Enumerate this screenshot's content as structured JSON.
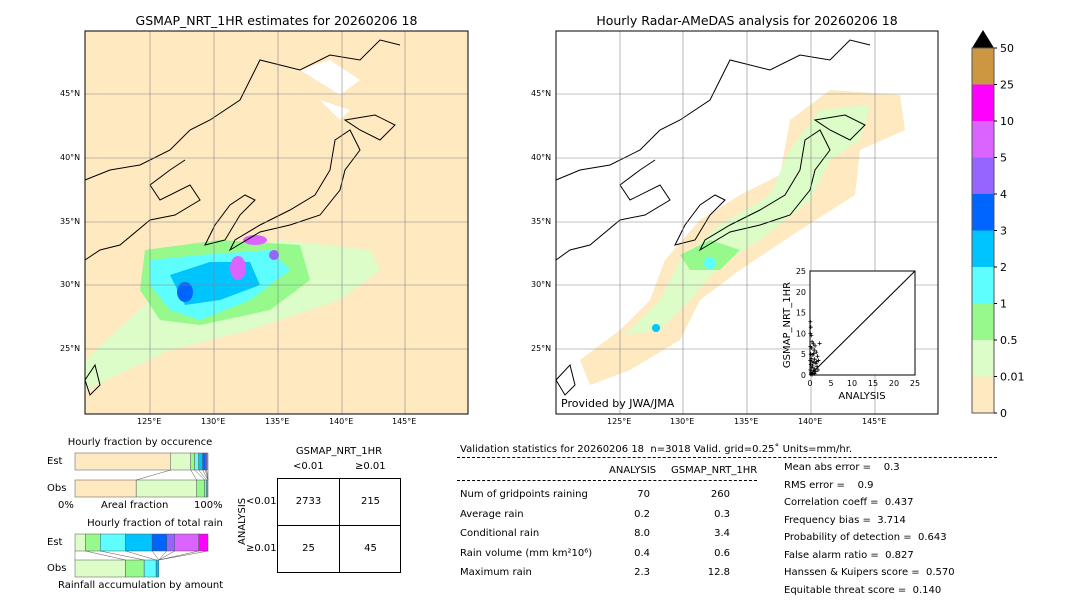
{
  "left_map": {
    "title": "GSMAP_NRT_1HR estimates for 20260206 18",
    "lon_ticks": [
      "125°E",
      "130°E",
      "135°E",
      "140°E",
      "145°E"
    ],
    "lat_ticks": [
      "45°N",
      "40°N",
      "35°N",
      "30°N",
      "25°N"
    ]
  },
  "right_map": {
    "title": "Hourly Radar-AMeDAS analysis for 20260206 18",
    "lon_ticks": [
      "125°E",
      "130°E",
      "135°E",
      "140°E",
      "145°E"
    ],
    "lat_ticks": [
      "45°N",
      "40°N",
      "35°N",
      "30°N",
      "25°N"
    ],
    "credit": "Provided by JWA/JMA"
  },
  "colorbar": {
    "labels": [
      "0",
      "0.01",
      "0.5",
      "1",
      "2",
      "3",
      "4",
      "5",
      "10",
      "25",
      "50"
    ],
    "colors": [
      "#fee9c0",
      "#dcfcc8",
      "#96f98c",
      "#5efefe",
      "#00c4fe",
      "#0064fe",
      "#9664fe",
      "#dc64fe",
      "#fe00fe",
      "#cd9640"
    ],
    "extend_color": "#000000"
  },
  "chart_data": [
    {
      "type": "scatter",
      "xlabel": "ANALYSIS",
      "ylabel": "GSMAP_NRT_1HR",
      "xlim": [
        0,
        25
      ],
      "ylim": [
        0,
        25
      ],
      "x_ticks": [
        "0",
        "5",
        "10",
        "15",
        "20",
        "25"
      ],
      "y_ticks": [
        "0",
        "5",
        "10",
        "15",
        "20",
        "25"
      ],
      "reference_line": "y=x",
      "points": [
        [
          0.1,
          12.8
        ],
        [
          0.2,
          11.5
        ],
        [
          0.1,
          10
        ],
        [
          0.3,
          9.5
        ],
        [
          0.5,
          8
        ],
        [
          0.8,
          7.5
        ],
        [
          1.2,
          7
        ],
        [
          2.3,
          7.6
        ],
        [
          0.4,
          6.5
        ],
        [
          1,
          6
        ],
        [
          1.5,
          5.5
        ],
        [
          0.2,
          5
        ],
        [
          0.7,
          4.8
        ],
        [
          1.8,
          4.5
        ],
        [
          0.3,
          4
        ],
        [
          1.1,
          3.8
        ],
        [
          2,
          3.5
        ],
        [
          0.5,
          3.2
        ],
        [
          0.9,
          3
        ],
        [
          1.4,
          2.8
        ],
        [
          0.2,
          2.5
        ],
        [
          0.6,
          2.2
        ],
        [
          1.7,
          2
        ],
        [
          0.4,
          1.8
        ],
        [
          1,
          1.5
        ],
        [
          0.1,
          1.2
        ],
        [
          0.8,
          1
        ],
        [
          1.3,
          0.8
        ],
        [
          0.3,
          0.6
        ],
        [
          0.6,
          0.4
        ],
        [
          0.2,
          0.2
        ],
        [
          1.1,
          0.3
        ],
        [
          0.5,
          0.1
        ],
        [
          1.9,
          1.2
        ],
        [
          0.1,
          3.5
        ],
        [
          0.1,
          6.8
        ],
        [
          0.9,
          5.2
        ],
        [
          1.6,
          3.2
        ]
      ]
    },
    {
      "type": "bar",
      "title": "Hourly fraction by occurence",
      "xlabel": "Areal fraction",
      "x_ticks": [
        "0%",
        "100%"
      ],
      "categories": [
        "Est",
        "Obs"
      ],
      "segments": {
        "Est": [
          0.72,
          0.15,
          0.03,
          0.03,
          0.03,
          0.02,
          0.01,
          0.01
        ],
        "Obs": [
          0.46,
          0.455,
          0.06,
          0.015,
          0.01
        ]
      }
    },
    {
      "type": "bar",
      "title": "Hourly fraction of total rain",
      "xlabel": "Rainfall accumulation by amount",
      "categories": [
        "Est",
        "Obs"
      ],
      "segments": {
        "Est": [
          0,
          0.08,
          0.11,
          0.19,
          0.2,
          0.11,
          0.06,
          0.18,
          0.07
        ],
        "Obs": [
          0,
          0.38,
          0.14,
          0.09,
          0.02
        ]
      }
    },
    {
      "type": "table",
      "title": "GSMAP_NRT_1HR",
      "col_headers": [
        "<0.01",
        "≥0.01"
      ],
      "row_label": "ANALYSIS",
      "row_headers": [
        "<0.01",
        "≥0.01"
      ],
      "cells": [
        [
          "2733",
          "215"
        ],
        [
          "25",
          "45"
        ]
      ]
    }
  ],
  "stats": {
    "header": "Validation statistics for 20260206 18  n=3018 Valid. grid=0.25˚ Units=mm/hr.",
    "col_analysis": "ANALYSIS",
    "col_gsmap": "GSMAP_NRT_1HR",
    "rows": [
      {
        "label": "Num of gridpoints raining",
        "a": "70",
        "g": "260"
      },
      {
        "label": "Average rain",
        "a": "0.2",
        "g": "0.3"
      },
      {
        "label": "Conditional rain",
        "a": "8.0",
        "g": "3.4"
      },
      {
        "label": "Rain volume (mm km²10⁶)",
        "a": "0.4",
        "g": "0.6"
      },
      {
        "label": "Maximum rain",
        "a": "2.3",
        "g": "12.8"
      }
    ],
    "scores": [
      "Mean abs error =    0.3",
      "RMS error =    0.9",
      "Correlation coeff =  0.437",
      "Frequency bias =  3.714",
      "Probability of detection =  0.643",
      "False alarm ratio =  0.827",
      "Hanssen & Kuipers score =  0.570",
      "Equitable threat score =  0.140"
    ]
  }
}
